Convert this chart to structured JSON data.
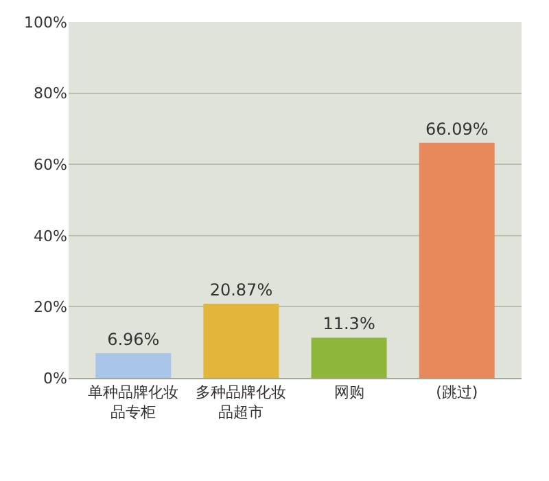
{
  "chart_data": {
    "type": "bar",
    "categories": [
      "单种品牌化妆品专柜",
      "多种品牌化妆品超市",
      "网购",
      "(跳过)"
    ],
    "values": [
      6.96,
      20.87,
      11.3,
      66.09
    ],
    "value_labels": [
      "6.96%",
      "20.87%",
      "11.3%",
      "66.09%"
    ],
    "colors": [
      "#a9c6e8",
      "#e2b63a",
      "#8db63a",
      "#e8895c"
    ],
    "ylim": [
      0,
      100
    ],
    "yticks": [
      {
        "value": 0,
        "label": "0%"
      },
      {
        "value": 20,
        "label": "20%"
      },
      {
        "value": 40,
        "label": "40%"
      },
      {
        "value": 60,
        "label": "60%"
      },
      {
        "value": 80,
        "label": "80%"
      },
      {
        "value": 100,
        "label": "100%"
      }
    ],
    "grid": "y"
  }
}
